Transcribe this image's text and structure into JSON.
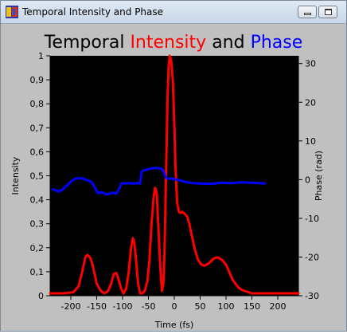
{
  "window": {
    "title": "Temporal Intensity and Phase",
    "minimize_icon": "minimize-icon",
    "maximize_icon": "maximize-icon",
    "app_icon": "app-icon"
  },
  "chart_data": {
    "type": "line",
    "title_parts": [
      {
        "text": "Temporal ",
        "color": "#000000"
      },
      {
        "text": "Intensity",
        "color": "#ff0000"
      },
      {
        "text": " and ",
        "color": "#000000"
      },
      {
        "text": "Phase",
        "color": "#0000ff"
      }
    ],
    "xlabel": "Time (fs)",
    "ylabel": "Intensity",
    "y2label": "Phase (rad)",
    "xlim": [
      -240,
      240
    ],
    "ylim": [
      0,
      1
    ],
    "y2lim": [
      -30,
      32
    ],
    "x_ticks": [
      -200,
      -150,
      -100,
      -50,
      0,
      50,
      100,
      150,
      200
    ],
    "x_tick_labels": [
      "-200",
      "-150",
      "-100",
      "-50",
      "0",
      "50",
      "100",
      "150",
      "200"
    ],
    "y_ticks": [
      0,
      0.1,
      0.2,
      0.3,
      0.4,
      0.5,
      0.6,
      0.7,
      0.8,
      0.9,
      1
    ],
    "y_tick_labels": [
      "0",
      "0,1",
      "0,2",
      "0,3",
      "0,4",
      "0,5",
      "0,6",
      "0,7",
      "0,8",
      "0,9",
      "1"
    ],
    "y2_ticks": [
      -30,
      -20,
      -10,
      0,
      10,
      20,
      30
    ],
    "y2_tick_labels": [
      "-30",
      "-20",
      "-10",
      "0",
      "10",
      "20",
      "30"
    ],
    "background": "#000000",
    "grid": false,
    "series": [
      {
        "name": "Intensity",
        "axis": "left",
        "color": "#ff0000",
        "x": [
          -240,
          -230,
          -215,
          -205,
          -195,
          -185,
          -178,
          -172,
          -168,
          -163,
          -158,
          -150,
          -142,
          -135,
          -128,
          -122,
          -117,
          -112,
          -108,
          -103,
          -98,
          -93,
          -88,
          -84,
          -80,
          -77,
          -74,
          -70,
          -66,
          -62,
          -57,
          -52,
          -48,
          -44,
          -40,
          -37,
          -34,
          -31,
          -27,
          -24,
          -21,
          -19,
          -17,
          -15,
          -13,
          -11,
          -9,
          -6,
          -3,
          0,
          2,
          4,
          6,
          9,
          12,
          15,
          18,
          21,
          25,
          29,
          34,
          40,
          46,
          52,
          58,
          63,
          69,
          76,
          84,
          92,
          100,
          106,
          112,
          118,
          124,
          130,
          136,
          143,
          150,
          158,
          165,
          172,
          180,
          190,
          200,
          210,
          220,
          230,
          240
        ],
        "y": [
          0.01,
          0.01,
          0.01,
          0.012,
          0.015,
          0.04,
          0.1,
          0.16,
          0.17,
          0.16,
          0.13,
          0.05,
          0.02,
          0.01,
          0.02,
          0.05,
          0.09,
          0.095,
          0.07,
          0.03,
          0.01,
          0.03,
          0.1,
          0.19,
          0.24,
          0.22,
          0.15,
          0.05,
          0.01,
          0.01,
          0.02,
          0.06,
          0.15,
          0.3,
          0.41,
          0.45,
          0.43,
          0.3,
          0.12,
          0.02,
          0.05,
          0.18,
          0.4,
          0.62,
          0.82,
          0.95,
          1.0,
          0.98,
          0.9,
          0.72,
          0.56,
          0.45,
          0.38,
          0.35,
          0.345,
          0.35,
          0.345,
          0.34,
          0.33,
          0.3,
          0.25,
          0.19,
          0.15,
          0.13,
          0.125,
          0.13,
          0.14,
          0.155,
          0.16,
          0.15,
          0.13,
          0.1,
          0.07,
          0.05,
          0.035,
          0.025,
          0.02,
          0.015,
          0.01,
          0.01,
          0.01,
          0.01,
          0.01,
          0.01,
          0.01,
          0.01,
          0.01,
          0.01,
          0.01
        ]
      },
      {
        "name": "Phase",
        "axis": "right",
        "color": "#0000ff",
        "x": [
          -235,
          -225,
          -218,
          -212,
          -205,
          -198,
          -190,
          -182,
          -175,
          -168,
          -162,
          -157,
          -152,
          -147,
          -140,
          -132,
          -125,
          -118,
          -112,
          -106,
          -102,
          -98,
          -94,
          -88,
          -80,
          -72,
          -66,
          -63,
          -60,
          -55,
          -48,
          -40,
          -33,
          -27,
          -22,
          -18,
          -14,
          -10,
          -4,
          4,
          12,
          22,
          35,
          50,
          70,
          90,
          110,
          130,
          150,
          165,
          175
        ],
        "y": [
          -2.5,
          -3,
          -2.8,
          -2,
          -1.2,
          -0.3,
          0.3,
          0.4,
          0.2,
          -0.2,
          -0.4,
          -1.2,
          -2.5,
          -3.5,
          -3.2,
          -3.8,
          -3.6,
          -3.4,
          -3.6,
          -2.2,
          -1,
          -0.9,
          -1,
          -0.9,
          -1,
          -0.9,
          -1,
          2,
          2.4,
          2.5,
          2.8,
          3,
          3,
          2.9,
          2.5,
          1,
          0.3,
          0.2,
          0.3,
          0,
          -0.2,
          -0.6,
          -0.9,
          -1,
          -1.1,
          -0.8,
          -0.9,
          -0.7,
          -0.8,
          -0.9,
          -1
        ]
      }
    ]
  }
}
